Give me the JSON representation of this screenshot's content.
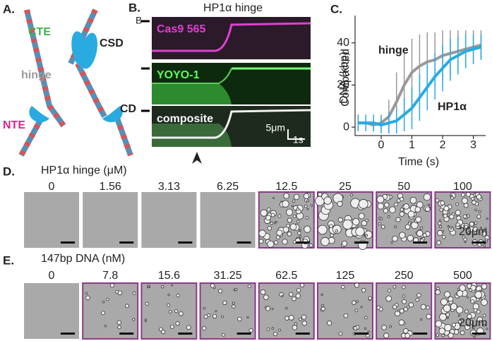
{
  "panel_a": {
    "letter": "A.",
    "labels": {
      "cte": "CTE",
      "csd": "CSD",
      "hinge": "hinge",
      "nte": "NTE",
      "cd": "CD"
    }
  },
  "panel_b": {
    "letter": "B.",
    "title": "HP1α hinge",
    "marker": "B",
    "channels": [
      "Cas9 565",
      "YOYO-1",
      "composite"
    ],
    "scale_x": "5μm",
    "scale_t": "1s"
  },
  "chart_data": {
    "type": "line",
    "letter": "C.",
    "xlabel": "Time (s)",
    "ylabel": [
      "Compacted",
      "DNA (kbp)"
    ],
    "x": [
      -0.75,
      -0.5,
      -0.25,
      0,
      0.25,
      0.5,
      0.75,
      1,
      1.25,
      1.5,
      1.75,
      2,
      2.25,
      2.5,
      2.75,
      3,
      3.25
    ],
    "series": [
      {
        "name": "hinge",
        "color": "#999999",
        "values": [
          2,
          2,
          1,
          2,
          5,
          12,
          20,
          26,
          29,
          31,
          32,
          34,
          35,
          36,
          37,
          38,
          39
        ],
        "errors": [
          3,
          3,
          3,
          4,
          8,
          14,
          15,
          16,
          15,
          14,
          13,
          12,
          11,
          10,
          9,
          8,
          7
        ]
      },
      {
        "name": "HP1α",
        "color": "#29aae1",
        "values": [
          2,
          2,
          2,
          1,
          2,
          3,
          6,
          9,
          14,
          19,
          24,
          28,
          32,
          34,
          36,
          37,
          38
        ],
        "errors": [
          4,
          4,
          4,
          4,
          5,
          6,
          8,
          10,
          11,
          11,
          11,
          11,
          10,
          9,
          8,
          7,
          6
        ]
      }
    ],
    "xlim": [
      -0.85,
      3.4
    ],
    "ylim": [
      -4,
      53
    ],
    "xticks": [
      0,
      1,
      2,
      3
    ],
    "yticks": [
      0,
      20,
      40
    ]
  },
  "panel_d": {
    "letter": "D.",
    "title": "HP1α hinge (μM)",
    "labels": [
      "0",
      "1.56",
      "3.13",
      "6.25",
      "12.5",
      "25",
      "50",
      "100"
    ],
    "scale": "20μm",
    "frame_color": "#8b3a8b",
    "framed": [
      false,
      false,
      false,
      false,
      true,
      true,
      true,
      true
    ]
  },
  "panel_e": {
    "letter": "E.",
    "title": "147bp DNA (nM)",
    "labels": [
      "0",
      "7.8",
      "15.6",
      "31.25",
      "62.5",
      "125",
      "250",
      "500"
    ],
    "scale": "20μm",
    "frame_color": "#8b3a8b",
    "framed": [
      false,
      true,
      true,
      true,
      true,
      true,
      true,
      true
    ]
  }
}
